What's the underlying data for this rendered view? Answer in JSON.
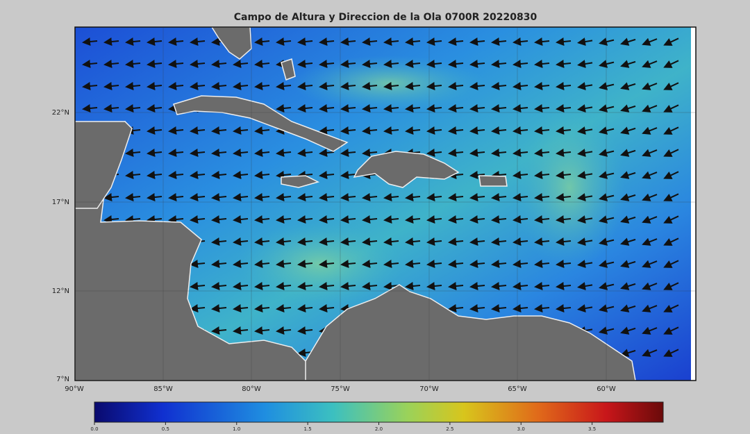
{
  "map": {
    "title": "Campo de Altura y Direccion de la Ola 0700R 20220830",
    "lon_labels": [
      "90°W",
      "85°W",
      "80°W",
      "75°W",
      "70°W",
      "65°W",
      "60°W"
    ],
    "lat_labels": [
      "22°N",
      "17°N",
      "12°N",
      "7°N"
    ],
    "colorbar": {
      "lim": [
        0,
        4
      ],
      "ticks": [
        {
          "value": 0,
          "label": "0.0"
        },
        {
          "value": 0.5,
          "label": "0.5"
        },
        {
          "value": 1,
          "label": "1.0"
        },
        {
          "value": 1.5,
          "label": "1.5"
        },
        {
          "value": 2,
          "label": "2.0"
        },
        {
          "value": 2.5,
          "label": "2.5"
        },
        {
          "value": 3,
          "label": "3.0"
        },
        {
          "value": 3.5,
          "label": "3.5"
        }
      ]
    }
  }
}
